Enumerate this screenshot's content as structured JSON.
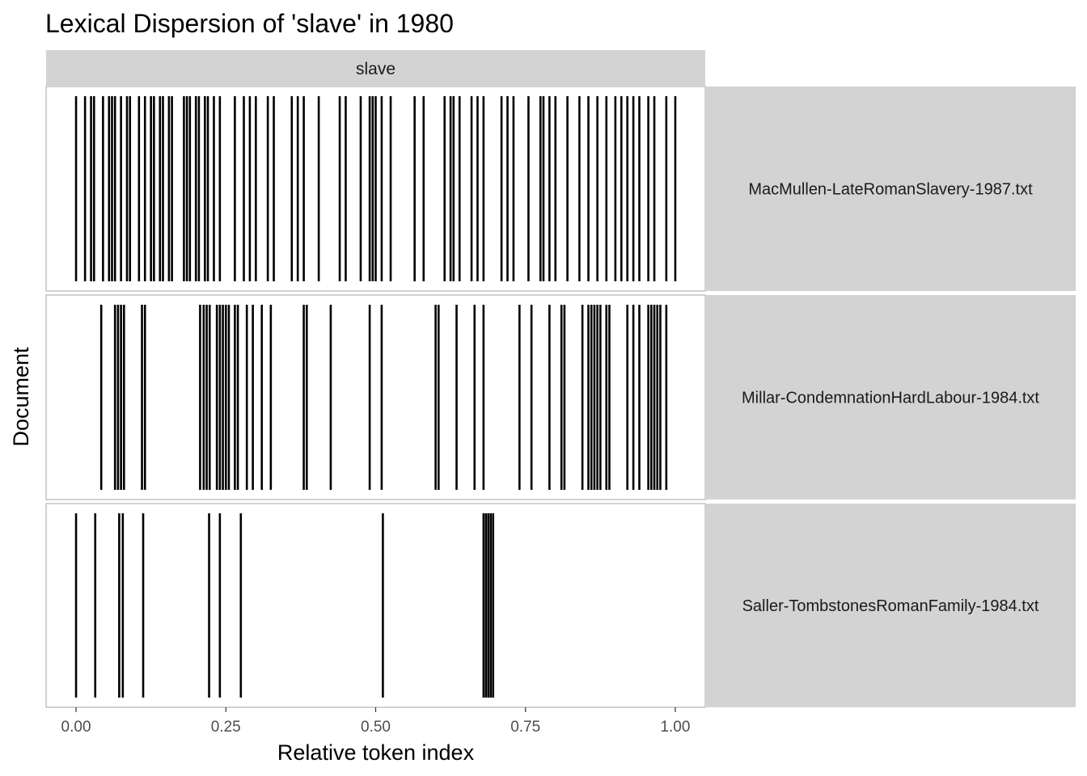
{
  "chart_data": {
    "type": "lexical-dispersion",
    "title": "Lexical Dispersion of 'slave' in 1980",
    "xlabel": "Relative token index",
    "ylabel": "Document",
    "facet_column_label": "slave",
    "xlim": [
      -0.05,
      1.05
    ],
    "x_ticks": [
      0.0,
      0.25,
      0.5,
      0.75,
      1.0
    ],
    "x_tick_labels": [
      "0.00",
      "0.25",
      "0.50",
      "0.75",
      "1.00"
    ],
    "grid": false,
    "legend": "none",
    "mark_color": "#000000",
    "strip_color": "#d3d3d3",
    "panel_border_color": "#b3b3b3",
    "series": [
      {
        "name": "MacMullen-LateRomanSlavery-1987.txt",
        "x": [
          0.0,
          0.015,
          0.025,
          0.03,
          0.045,
          0.055,
          0.06,
          0.065,
          0.075,
          0.085,
          0.09,
          0.105,
          0.115,
          0.125,
          0.13,
          0.14,
          0.145,
          0.155,
          0.16,
          0.18,
          0.185,
          0.19,
          0.2,
          0.205,
          0.215,
          0.22,
          0.23,
          0.24,
          0.265,
          0.28,
          0.29,
          0.3,
          0.32,
          0.33,
          0.36,
          0.37,
          0.38,
          0.405,
          0.44,
          0.45,
          0.475,
          0.49,
          0.495,
          0.5,
          0.51,
          0.525,
          0.565,
          0.58,
          0.615,
          0.625,
          0.63,
          0.64,
          0.66,
          0.67,
          0.68,
          0.71,
          0.72,
          0.73,
          0.755,
          0.775,
          0.78,
          0.79,
          0.8,
          0.82,
          0.84,
          0.855,
          0.87,
          0.885,
          0.9,
          0.91,
          0.92,
          0.93,
          0.94,
          0.955,
          0.965,
          0.985,
          1.0
        ]
      },
      {
        "name": "Millar-CondemnationHardLabour-1984.txt",
        "x": [
          0.042,
          0.065,
          0.07,
          0.075,
          0.08,
          0.11,
          0.115,
          0.207,
          0.213,
          0.218,
          0.223,
          0.235,
          0.24,
          0.245,
          0.25,
          0.255,
          0.265,
          0.27,
          0.285,
          0.295,
          0.31,
          0.325,
          0.38,
          0.385,
          0.425,
          0.49,
          0.51,
          0.6,
          0.605,
          0.635,
          0.665,
          0.68,
          0.74,
          0.76,
          0.79,
          0.81,
          0.815,
          0.845,
          0.855,
          0.86,
          0.865,
          0.87,
          0.875,
          0.885,
          0.89,
          0.92,
          0.93,
          0.94,
          0.955,
          0.96,
          0.965,
          0.97,
          0.975,
          0.985
        ]
      },
      {
        "name": "Saller-TombstonesRomanFamily-1984.txt",
        "x": [
          0.0,
          0.032,
          0.072,
          0.078,
          0.112,
          0.222,
          0.24,
          0.275,
          0.512,
          0.68,
          0.684,
          0.688,
          0.692,
          0.696
        ]
      }
    ]
  }
}
